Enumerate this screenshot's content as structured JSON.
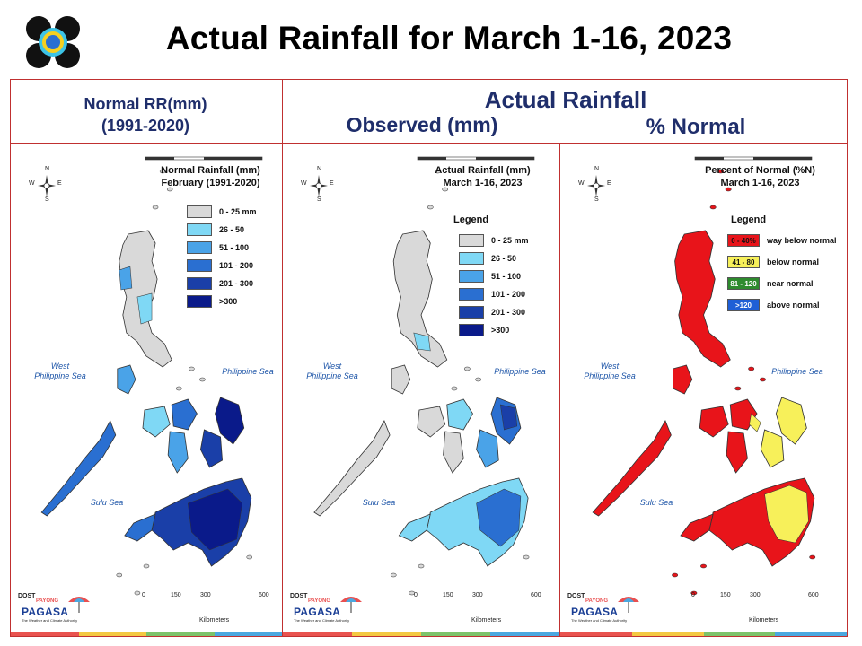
{
  "title": "Actual Rainfall for March 1-16, 2023",
  "header": {
    "normal_line1": "Normal RR(mm)",
    "normal_line2": "(1991-2020)",
    "actual": "Actual Rainfall",
    "observed": "Observed (mm)",
    "percent": "% Normal"
  },
  "panels": [
    {
      "title_line1": "Normal Rainfall (mm)",
      "title_line2": "February (1991-2020)",
      "legend_title": "",
      "legend": [
        {
          "label": "0 - 25 mm",
          "color": "#d9d9d9"
        },
        {
          "label": "26 - 50",
          "color": "#7fd8f5"
        },
        {
          "label": "51 - 100",
          "color": "#4aa3e8"
        },
        {
          "label": "101 - 200",
          "color": "#2a6fd1"
        },
        {
          "label": "201 - 300",
          "color": "#1a3fa8"
        },
        {
          "label": ">300",
          "color": "#0a1a8a"
        }
      ]
    },
    {
      "title_line1": "Actual Rainfall (mm)",
      "title_line2": "March 1-16, 2023",
      "legend_title": "Legend",
      "legend": [
        {
          "label": "0 - 25 mm",
          "color": "#d9d9d9"
        },
        {
          "label": "26 - 50",
          "color": "#7fd8f5"
        },
        {
          "label": "51 - 100",
          "color": "#4aa3e8"
        },
        {
          "label": "101 - 200",
          "color": "#2a6fd1"
        },
        {
          "label": "201 - 300",
          "color": "#1a3fa8"
        },
        {
          "label": ">300",
          "color": "#0a1a8a"
        }
      ]
    },
    {
      "title_line1": "Percent of Normal (%N)",
      "title_line2": "March 1-16, 2023",
      "legend_title": "Legend",
      "legend": [
        {
          "range": "0 - 40%",
          "label": "way below normal",
          "color": "#e8141a"
        },
        {
          "range": "41 - 80",
          "label": "below normal",
          "color": "#f7f05a"
        },
        {
          "range": "81 - 120",
          "label": "near normal",
          "color": "#2e8b2e"
        },
        {
          "range": ">120",
          "label": "above normal",
          "color": "#1f5fd6"
        }
      ]
    }
  ],
  "map_labels": {
    "west_sea_line1": "West",
    "west_sea_line2": "Philippine Sea",
    "east_sea": "Philippine Sea",
    "sulu_sea": "Sulu Sea"
  },
  "compass": {
    "n": "N",
    "e": "E",
    "s": "S",
    "w": "W"
  },
  "scale": {
    "ticks": [
      "0",
      "150",
      "300",
      "600"
    ],
    "unit": "Kilometers"
  },
  "pagasa": {
    "dost": "DOST",
    "name": "PAGASA",
    "tagline": "The Weather and Climate Authority",
    "brand": "PAYONG"
  },
  "colors": {
    "header_text": "#1f2e6b",
    "frame": "#c03030",
    "strip": [
      "#e9534f",
      "#f4c842",
      "#7cc36a",
      "#4aa8e0"
    ]
  }
}
